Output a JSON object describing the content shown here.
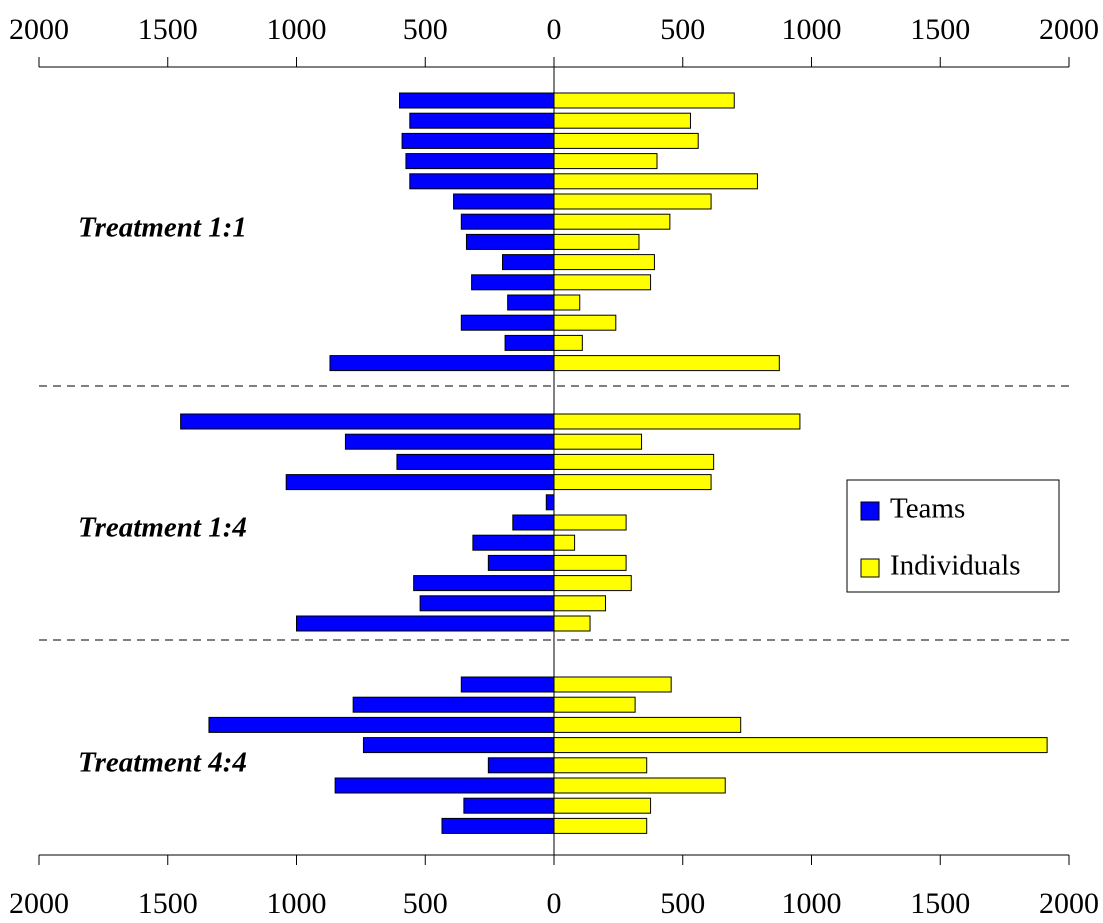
{
  "chart_data": {
    "type": "bar",
    "orientation": "horizontal",
    "layout": "back-to-back",
    "xlim": [
      -2000,
      2000
    ],
    "tick_values": [
      -2000,
      -1500,
      -1000,
      -500,
      0,
      500,
      1000,
      1500,
      2000
    ],
    "tick_labels": [
      "2000",
      "1500",
      "1000",
      "500",
      "0",
      "500",
      "1000",
      "1500",
      "2000"
    ],
    "legend": {
      "placement": "right",
      "entries": [
        {
          "name": "Teams",
          "color": "#0000FF"
        },
        {
          "name": "Individuals",
          "color": "#FFFF00"
        }
      ]
    },
    "groups": [
      {
        "label": "Treatment 1:1",
        "teams": [
          600,
          560,
          590,
          575,
          560,
          390,
          360,
          340,
          200,
          320,
          180,
          360,
          190,
          870
        ],
        "individuals": [
          700,
          530,
          560,
          400,
          790,
          610,
          450,
          330,
          390,
          375,
          100,
          240,
          110,
          875
        ]
      },
      {
        "label": "Treatment 1:4",
        "teams": [
          1450,
          810,
          610,
          1040,
          30,
          160,
          315,
          255,
          545,
          520,
          1000
        ],
        "individuals": [
          955,
          340,
          620,
          610,
          0,
          280,
          80,
          280,
          300,
          200,
          140
        ]
      },
      {
        "label": "Treatment 4:4",
        "teams": [
          360,
          780,
          1340,
          740,
          255,
          850,
          350,
          435
        ],
        "individuals": [
          455,
          315,
          725,
          1915,
          360,
          665,
          375,
          360
        ]
      }
    ]
  }
}
